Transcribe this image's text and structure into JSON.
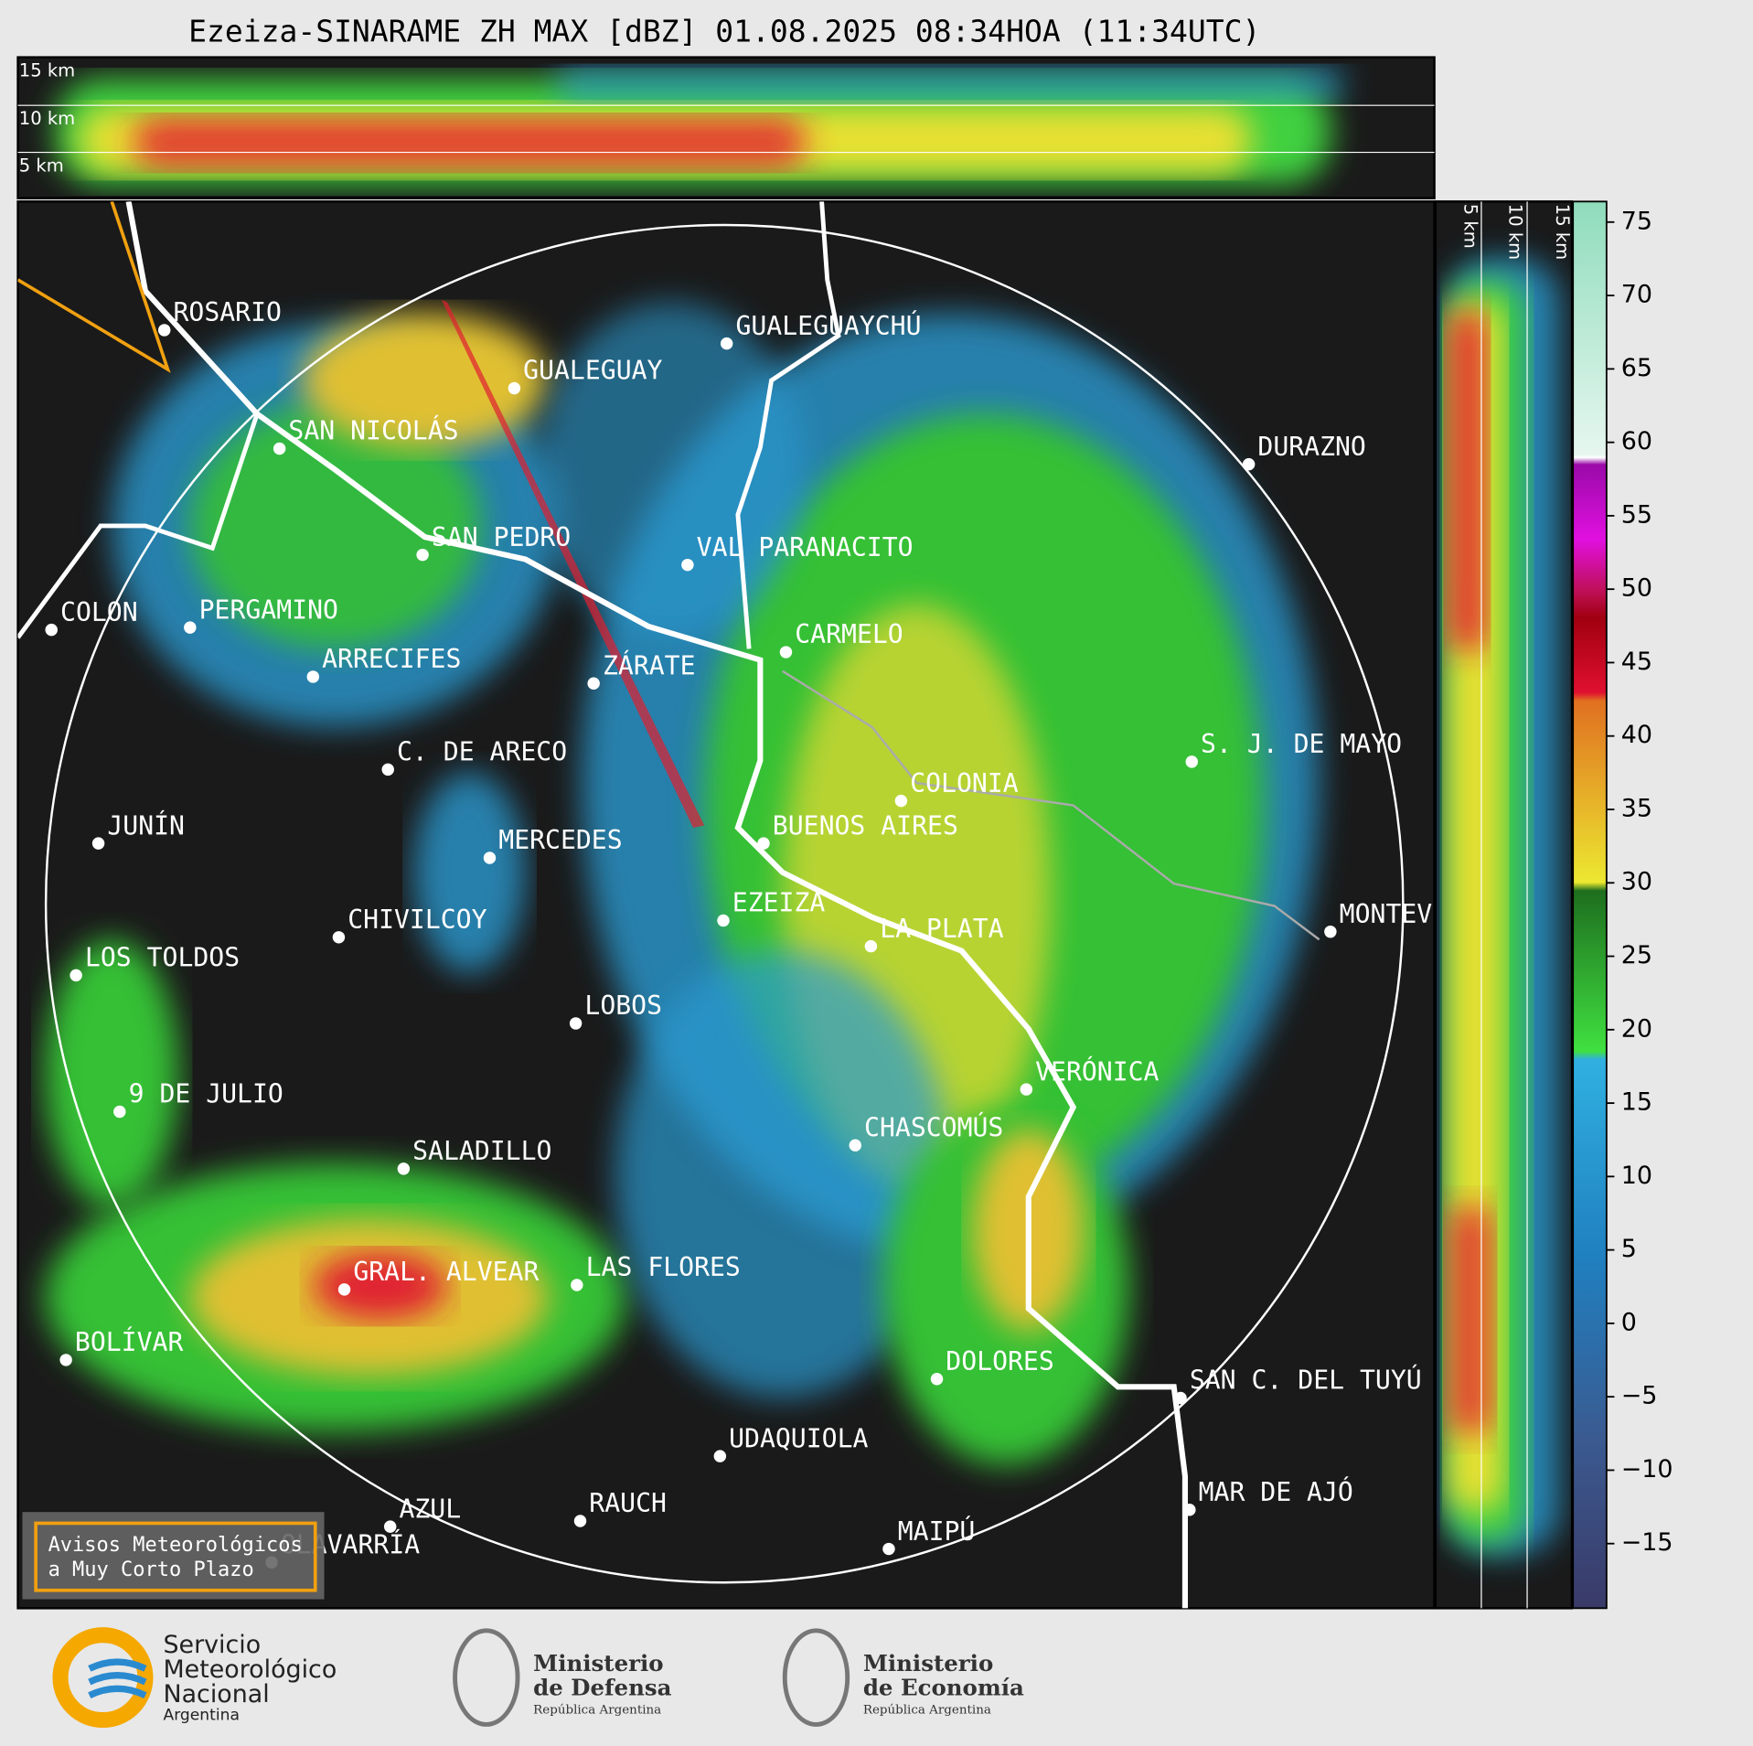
{
  "title": "Ezeiza-SINARAME ZH MAX [dBZ] 01.08.2025 08:34HOA (11:34UTC)",
  "top_section_labels": [
    "15 km",
    "10 km",
    "5 km"
  ],
  "side_section_labels": [
    "5 km",
    "10 km",
    "15 km"
  ],
  "cities": [
    "ROSARIO",
    "GUALEGUAYCHÚ",
    "GUALEGUAY",
    "SAN NICOLÁS",
    "DURAZNO",
    "SAN PEDRO",
    "VAL PARANACITO",
    "COLON",
    "PERGAMINO",
    "CARMELO",
    "ARRECIFES",
    "ZÁRATE",
    "S. J. DE MAYO",
    "C. DE ARECO",
    "COLONIA",
    "BUENOS AIRES",
    "JUNÍN",
    "MERCEDES",
    "MONTEV",
    "EZEIZA",
    "LA PLATA",
    "CHIVILCOY",
    "LOS TOLDOS",
    "LOBOS",
    "VERÓNICA",
    "9 DE JULIO",
    "CHASCOMÚS",
    "SALADILLO",
    "GRAL. ALVEAR",
    "LAS FLORES",
    "BOLÍVAR",
    "DOLORES",
    "SAN C. DEL TUYÚ",
    "UDAQUIOLA",
    "MAR DE AJÓ",
    "RAUCH",
    "AZUL",
    "OLAVARRÍA",
    "MAIPÚ"
  ],
  "colorbar": {
    "lim": [
      -19.4,
      76.4
    ],
    "ticks": [
      75,
      70,
      65,
      60,
      55,
      50,
      45,
      40,
      35,
      30,
      25,
      20,
      15,
      10,
      5,
      0,
      {
        "value": -5,
        "label": "−5"
      },
      {
        "value": -10,
        "label": "−10"
      },
      {
        "value": -15,
        "label": "−15"
      }
    ]
  },
  "warning_button": [
    "Avisos Meteorológicos",
    "a Muy Corto Plazo"
  ],
  "footer": {
    "smn": [
      "Servicio",
      "Meteorológico",
      "Nacional",
      "Argentina"
    ],
    "defensa": [
      "Ministerio",
      "de Defensa",
      "República Argentina"
    ],
    "economia": [
      "Ministerio",
      "de Economía",
      "República Argentina"
    ]
  }
}
